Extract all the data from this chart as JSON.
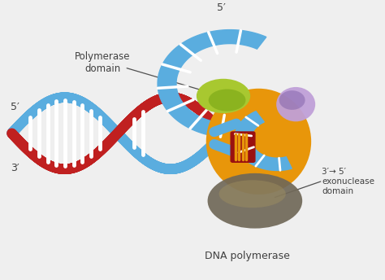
{
  "bg_color": "#efefef",
  "dna_blue": "#5AADDF",
  "dna_blue_dark": "#4898cc",
  "dna_red": "#c02020",
  "enzyme_orange": "#e8960a",
  "enzyme_green_light": "#a8c830",
  "enzyme_green_dark": "#70a010",
  "enzyme_purple_light": "#c0a0d8",
  "enzyme_purple_dark": "#8060a8",
  "enzyme_dark_blob": "#706858",
  "enzyme_dark_blob2": "#a09060",
  "label_color": "#404040",
  "line_color": "#505050",
  "title": "DNA polymerase",
  "label_polymerase": "Polymerase\ndomain",
  "label_exo": "3′→ 5′\nexonuclease\ndomain",
  "label_5prime_top": "5′",
  "label_5prime_left": "5′",
  "label_3prime_left": "3′"
}
